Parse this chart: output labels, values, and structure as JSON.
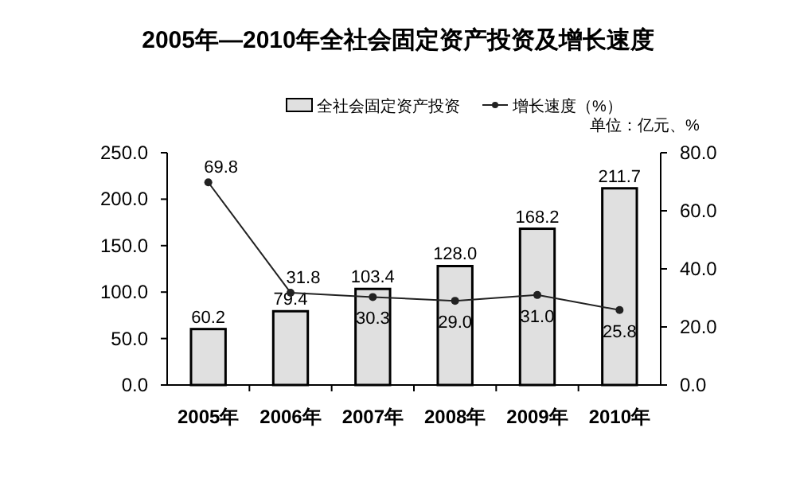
{
  "chart_data": {
    "type": "bar",
    "title": "2005年—2010年全社会固定资产投资及增长速度",
    "categories": [
      "2005年",
      "2006年",
      "2007年",
      "2008年",
      "2009年",
      "2010年"
    ],
    "series": [
      {
        "name": "全社会固定资产投资",
        "color": "#e0e0e0",
        "values": [
          60.2,
          79.4,
          103.4,
          128.0,
          168.2,
          211.7
        ],
        "value_labels": [
          "60.2",
          "79.4",
          "103.4",
          "128.0",
          "168.2",
          "211.7"
        ]
      },
      {
        "name": "增长速度（%）",
        "type": "line",
        "axis": "y2",
        "color": "#222222",
        "marker": "circle",
        "values": [
          69.8,
          31.8,
          30.3,
          29.0,
          31.0,
          25.8
        ],
        "value_labels": [
          "69.8",
          "31.8",
          "30.3",
          "29.0",
          "31.0",
          "25.8"
        ]
      }
    ],
    "ylim": [
      0,
      250
    ],
    "yticks": [
      {
        "value": 0,
        "label": "0.0"
      },
      {
        "value": 50,
        "label": "50.0"
      },
      {
        "value": 100,
        "label": "100.0"
      },
      {
        "value": 150,
        "label": "150.0"
      },
      {
        "value": 200,
        "label": "200.0"
      },
      {
        "value": 250,
        "label": "250.0"
      }
    ],
    "y2lim": [
      0,
      80
    ],
    "y2ticks": [
      {
        "value": 0,
        "label": "0.0"
      },
      {
        "value": 20,
        "label": "20.0"
      },
      {
        "value": 40,
        "label": "40.0"
      },
      {
        "value": 60,
        "label": "60.0"
      },
      {
        "value": 80,
        "label": "80.0"
      }
    ],
    "legend": "top",
    "grid": false,
    "annotations": [
      "单位：亿元、%"
    ]
  }
}
